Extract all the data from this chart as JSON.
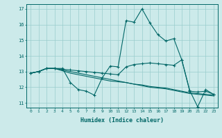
{
  "xlabel": "Humidex (Indice chaleur)",
  "bg_color": "#cceaea",
  "grid_color": "#99cccc",
  "line_color": "#006666",
  "xlim": [
    -0.5,
    23.5
  ],
  "ylim": [
    10.7,
    17.3
  ],
  "yticks": [
    11,
    12,
    13,
    14,
    15,
    16,
    17
  ],
  "xticks": [
    0,
    1,
    2,
    3,
    4,
    5,
    6,
    7,
    8,
    9,
    10,
    11,
    12,
    13,
    14,
    15,
    16,
    17,
    18,
    19,
    20,
    21,
    22,
    23
  ],
  "line1_x": [
    0,
    1,
    2,
    3,
    4,
    5,
    6,
    7,
    8,
    9,
    10,
    11,
    12,
    13,
    14,
    15,
    16,
    17,
    18,
    19,
    20,
    21,
    22,
    23
  ],
  "line1_y": [
    12.9,
    13.0,
    13.2,
    13.2,
    13.2,
    12.3,
    11.85,
    11.75,
    11.5,
    12.6,
    13.35,
    13.3,
    16.25,
    16.15,
    17.0,
    16.1,
    15.35,
    14.95,
    15.1,
    13.75,
    11.8,
    10.75,
    11.85,
    11.55
  ],
  "line2_x": [
    0,
    1,
    2,
    3,
    4,
    5,
    6,
    7,
    8,
    9,
    10,
    11,
    12,
    13,
    14,
    15,
    16,
    17,
    18,
    19,
    20,
    21,
    22,
    23
  ],
  "line2_y": [
    12.9,
    13.0,
    13.2,
    13.2,
    13.15,
    13.1,
    13.05,
    13.0,
    12.95,
    12.9,
    12.85,
    12.8,
    13.3,
    13.45,
    13.5,
    13.55,
    13.5,
    13.45,
    13.4,
    13.75,
    11.75,
    11.7,
    11.75,
    11.55
  ],
  "line3_x": [
    0,
    1,
    2,
    3,
    4,
    5,
    6,
    7,
    8,
    9,
    10,
    11,
    12,
    13,
    14,
    15,
    16,
    17,
    18,
    19,
    20,
    21,
    22,
    23
  ],
  "line3_y": [
    12.9,
    13.0,
    13.2,
    13.2,
    13.05,
    12.9,
    12.8,
    12.7,
    12.6,
    12.5,
    12.4,
    12.35,
    12.3,
    12.2,
    12.15,
    12.05,
    12.0,
    11.95,
    11.85,
    11.75,
    11.65,
    11.6,
    11.55,
    11.5
  ],
  "line4_x": [
    0,
    1,
    2,
    3,
    4,
    5,
    6,
    7,
    8,
    9,
    10,
    11,
    12,
    13,
    14,
    15,
    16,
    17,
    18,
    19,
    20,
    21,
    22,
    23
  ],
  "line4_y": [
    12.9,
    13.0,
    13.2,
    13.2,
    13.1,
    13.0,
    12.9,
    12.8,
    12.7,
    12.6,
    12.5,
    12.4,
    12.3,
    12.2,
    12.1,
    12.0,
    11.95,
    11.9,
    11.8,
    11.7,
    11.6,
    11.55,
    11.5,
    11.45
  ]
}
